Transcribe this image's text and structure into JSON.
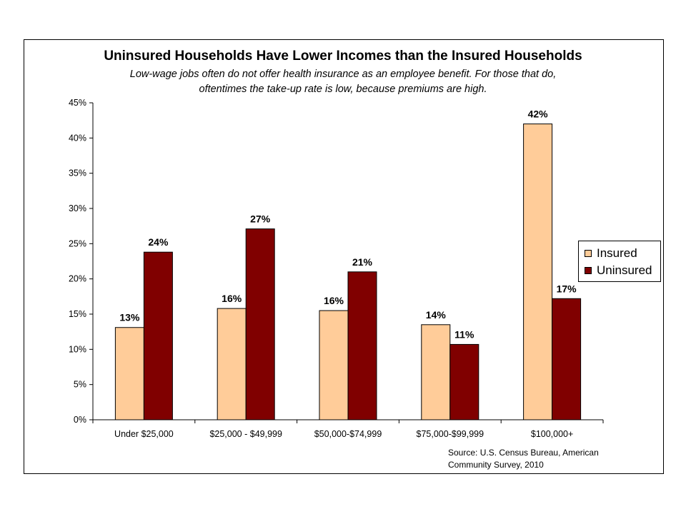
{
  "chart_data": {
    "type": "bar",
    "title": "Uninsured Households Have Lower Incomes than the Insured Households",
    "subtitle_lines": [
      "Low-wage jobs often do not offer health insurance as an employee benefit.  For those that do,",
      "oftentimes the take-up rate is low, because premiums are high."
    ],
    "categories": [
      "Under $25,000",
      "$25,000 - $49,999",
      "$50,000-$74,999",
      "$75,000-$99,999",
      "$100,000+"
    ],
    "series": [
      {
        "name": "Insured",
        "color": "#FFCC99",
        "values": [
          13.1,
          15.8,
          15.5,
          13.5,
          42.0
        ],
        "labels": [
          "13%",
          "16%",
          "16%",
          "14%",
          "42%"
        ]
      },
      {
        "name": "Uninsured",
        "color": "#800000",
        "values": [
          23.8,
          27.1,
          21.0,
          10.7,
          17.2
        ],
        "labels": [
          "24%",
          "27%",
          "21%",
          "11%",
          "17%"
        ]
      }
    ],
    "ylim": [
      0,
      45
    ],
    "yticks": [
      "0%",
      "5%",
      "10%",
      "15%",
      "20%",
      "25%",
      "30%",
      "35%",
      "40%",
      "45%"
    ],
    "xlabel": "",
    "ylabel": "",
    "legend_position": "right",
    "grid": false
  },
  "source_lines": [
    "Source: U.S. Census Bureau, American",
    "Community Survey, 2010"
  ]
}
